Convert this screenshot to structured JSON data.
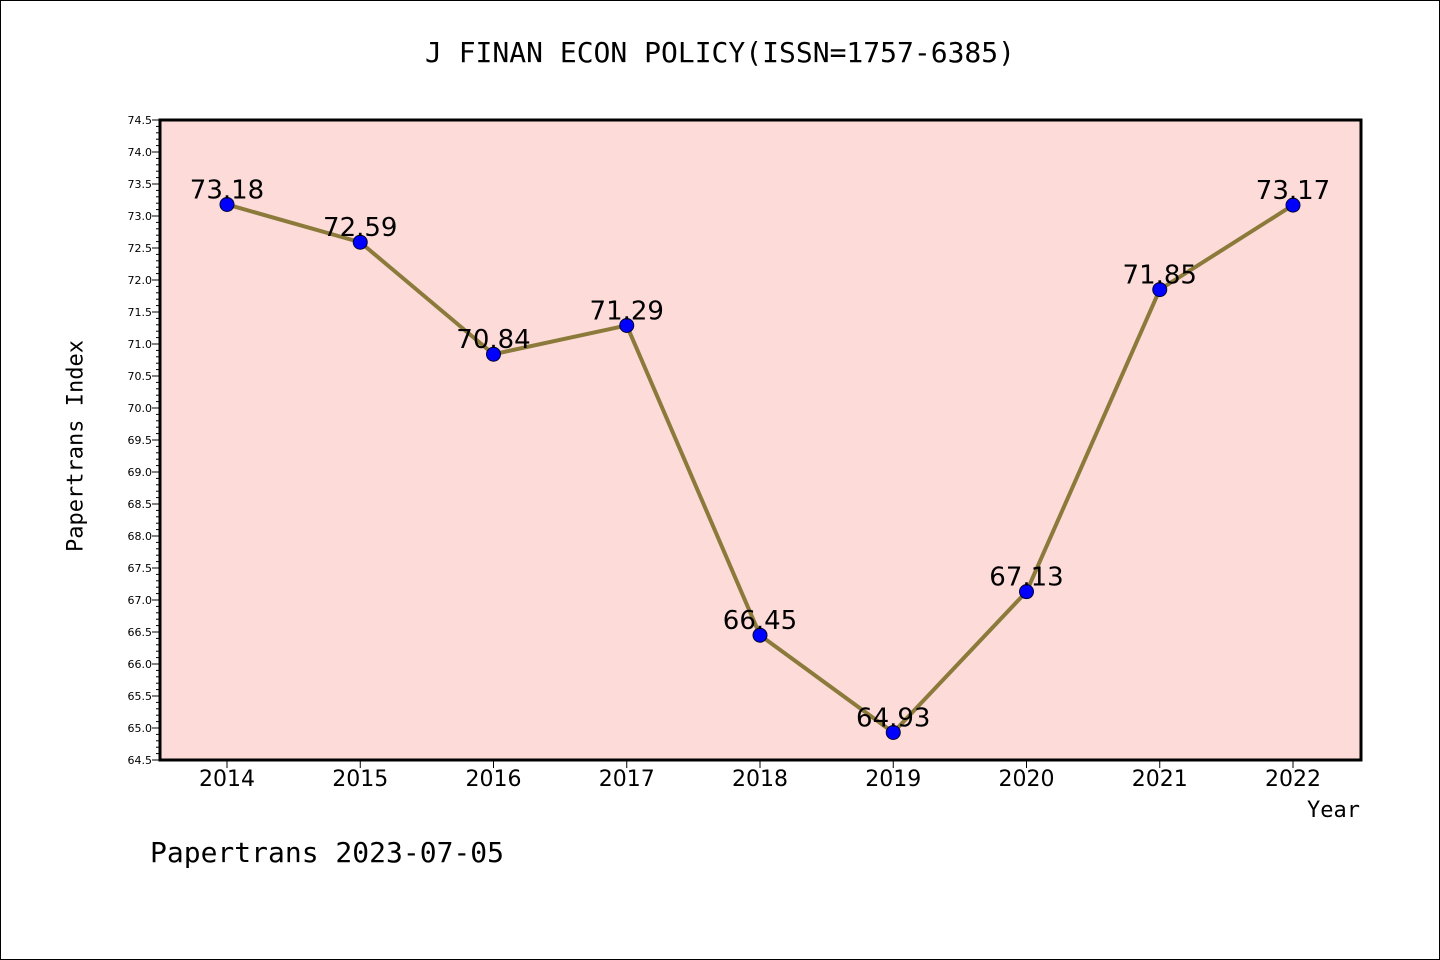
{
  "title": "J FINAN ECON POLICY(ISSN=1757-6385)",
  "footer": "Papertrans 2023-07-05",
  "colors": {
    "plot_background": "#fddbd9",
    "line": "#8b7a3a",
    "marker": "#0000ff"
  },
  "chart_data": {
    "type": "line",
    "title": "J FINAN ECON POLICY(ISSN=1757-6385)",
    "xlabel": "Year",
    "ylabel": "Papertrans Index",
    "categories": [
      "2014",
      "2015",
      "2016",
      "2017",
      "2018",
      "2019",
      "2020",
      "2021",
      "2022"
    ],
    "values": [
      73.18,
      72.59,
      70.84,
      71.29,
      66.45,
      64.93,
      67.13,
      71.85,
      73.17
    ],
    "data_labels": [
      "73.18",
      "72.59",
      "70.84",
      "71.29",
      "66.45",
      "64.93",
      "67.13",
      "71.85",
      "73.17"
    ],
    "ylim": [
      64.5,
      74.5
    ],
    "y_major_step": 0.5,
    "y_tick_labels": [
      "64.5",
      "65.0",
      "65.5",
      "66.0",
      "66.5",
      "67.0",
      "67.5",
      "68.0",
      "68.5",
      "69.0",
      "69.5",
      "70.0",
      "70.5",
      "71.0",
      "71.5",
      "72.0",
      "72.5",
      "73.0",
      "73.5",
      "74.0",
      "74.5"
    ],
    "grid": false,
    "legend": "none"
  }
}
